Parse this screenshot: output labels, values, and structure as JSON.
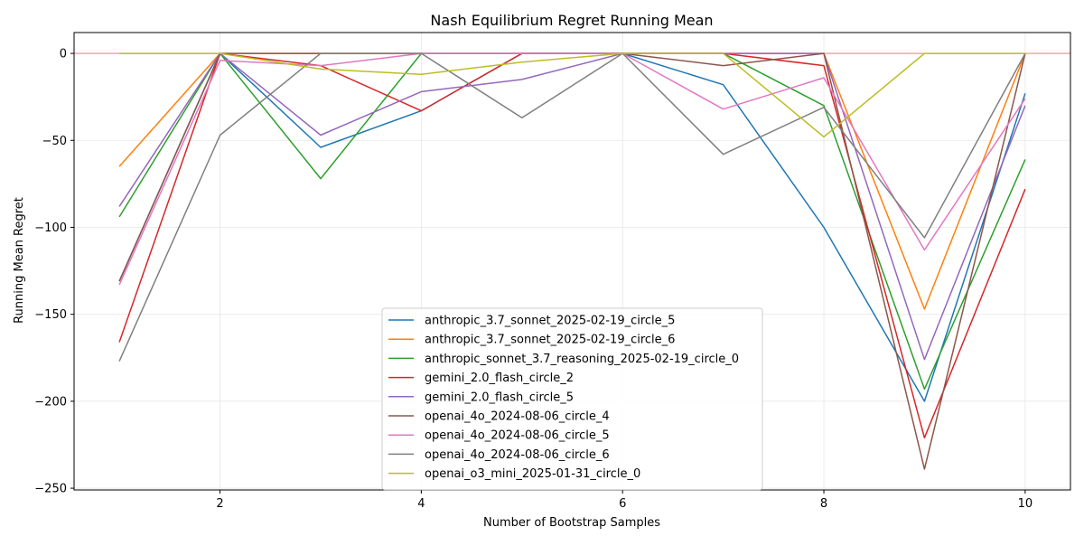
{
  "chart_data": {
    "type": "line",
    "title": "Nash Equilibrium Regret Running Mean",
    "xlabel": "Number of Bootstrap Samples",
    "ylabel": "Running Mean Regret",
    "xlim": [
      0.55,
      10.45
    ],
    "ylim": [
      -251,
      12
    ],
    "xticks": [
      2,
      4,
      6,
      8,
      10
    ],
    "yticks": [
      0,
      -50,
      -100,
      -150,
      -200,
      -250
    ],
    "grid": true,
    "legend_position": "lower-center",
    "reference_line": {
      "y": 0,
      "color": "#f08080"
    },
    "x": [
      1,
      2,
      3,
      4,
      5,
      6,
      7,
      8,
      9,
      10
    ],
    "series": [
      {
        "name": "anthropic_3.7_sonnet_2025-02-19_circle_5",
        "color": "#1f77b4",
        "values": [
          -131,
          0,
          -54,
          -33,
          0,
          0,
          -18,
          -100,
          -200,
          -23
        ]
      },
      {
        "name": "anthropic_3.7_sonnet_2025-02-19_circle_6",
        "color": "#ff7f0e",
        "values": [
          -65,
          0,
          0,
          0,
          0,
          0,
          0,
          0,
          -147,
          0
        ]
      },
      {
        "name": "anthropic_sonnet_3.7_reasoning_2025-02-19_circle_0",
        "color": "#2ca02c",
        "values": [
          -94,
          0,
          -72,
          0,
          0,
          0,
          0,
          -30,
          -193,
          -61
        ]
      },
      {
        "name": "gemini_2.0_flash_circle_2",
        "color": "#d62728",
        "values": [
          -166,
          0,
          -7,
          -33,
          0,
          0,
          0,
          -7,
          -221,
          -78
        ]
      },
      {
        "name": "gemini_2.0_flash_circle_5",
        "color": "#9467bd",
        "values": [
          -88,
          0,
          -47,
          -22,
          -15,
          0,
          0,
          0,
          -176,
          -30
        ]
      },
      {
        "name": "openai_4o_2024-08-06_circle_4",
        "color": "#8c564b",
        "values": [
          -131,
          0,
          0,
          0,
          0,
          0,
          -7,
          0,
          -239,
          0
        ]
      },
      {
        "name": "openai_4o_2024-08-06_circle_5",
        "color": "#e377c2",
        "values": [
          -133,
          -4,
          -7,
          0,
          0,
          0,
          -32,
          -14,
          -113,
          -26
        ]
      },
      {
        "name": "openai_4o_2024-08-06_circle_6",
        "color": "#7f7f7f",
        "values": [
          -177,
          -47,
          0,
          0,
          -37,
          0,
          -58,
          -31,
          -106,
          0
        ]
      },
      {
        "name": "openai_o3_mini_2025-01-31_circle_0",
        "color": "#bcbd22",
        "values": [
          0,
          0,
          -9,
          -12,
          -5,
          0,
          0,
          -48,
          0,
          0
        ]
      }
    ]
  }
}
